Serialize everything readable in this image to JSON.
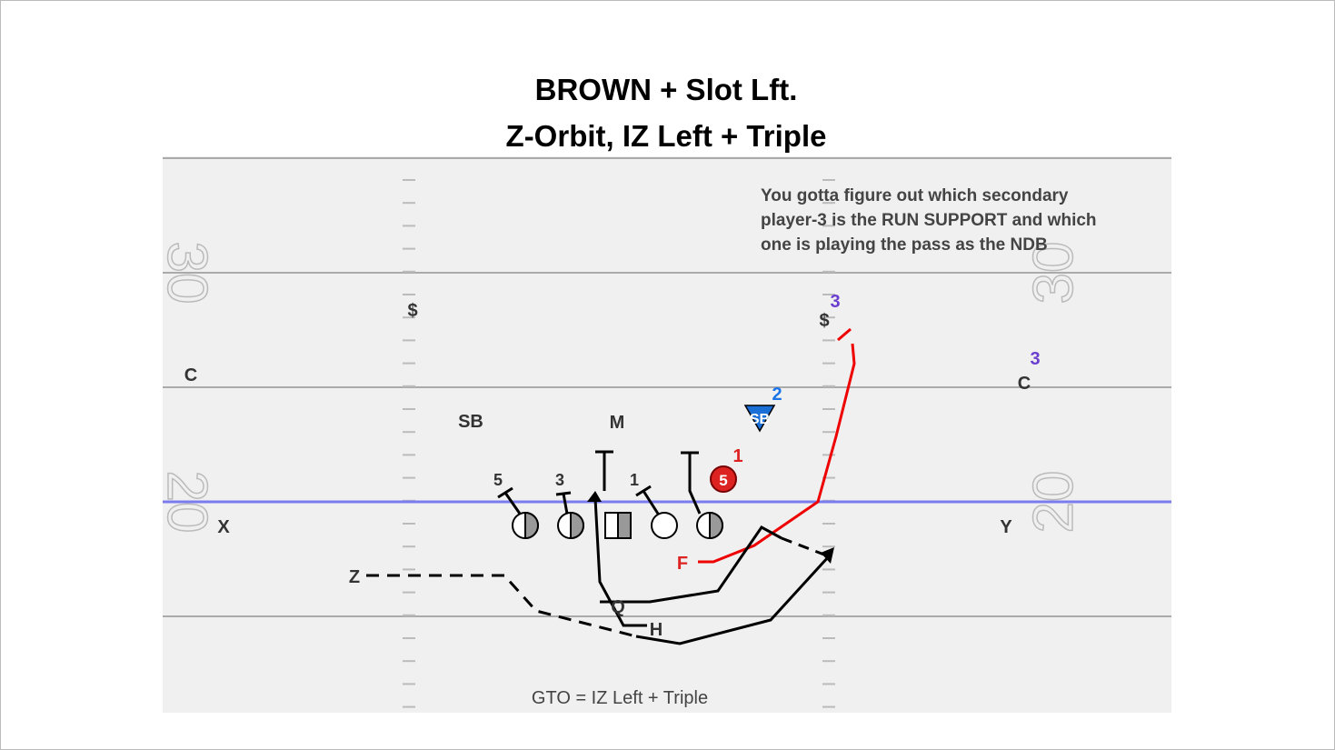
{
  "title": [
    "BROWN + Slot Lft.",
    "Z-Orbit, IZ Left + Triple"
  ],
  "note": [
    "You gotta figure out which secondary",
    "player-3 is the RUN SUPPORT and which",
    "one is playing the pass as the NDB"
  ],
  "footer": "GTO = IZ Left + Triple",
  "yard_numbers": [
    "30",
    "20",
    "30",
    "20"
  ],
  "defense_labels": [
    "$",
    "$",
    "C",
    "C",
    "SB",
    "M",
    "SB",
    "5"
  ],
  "offense_labels": [
    "X",
    "Y",
    "Z",
    "F",
    "H",
    "Q"
  ],
  "technique_numbers": [
    "5",
    "3",
    "1"
  ],
  "read_numbers": [
    "1",
    "2",
    "3",
    "3"
  ]
}
